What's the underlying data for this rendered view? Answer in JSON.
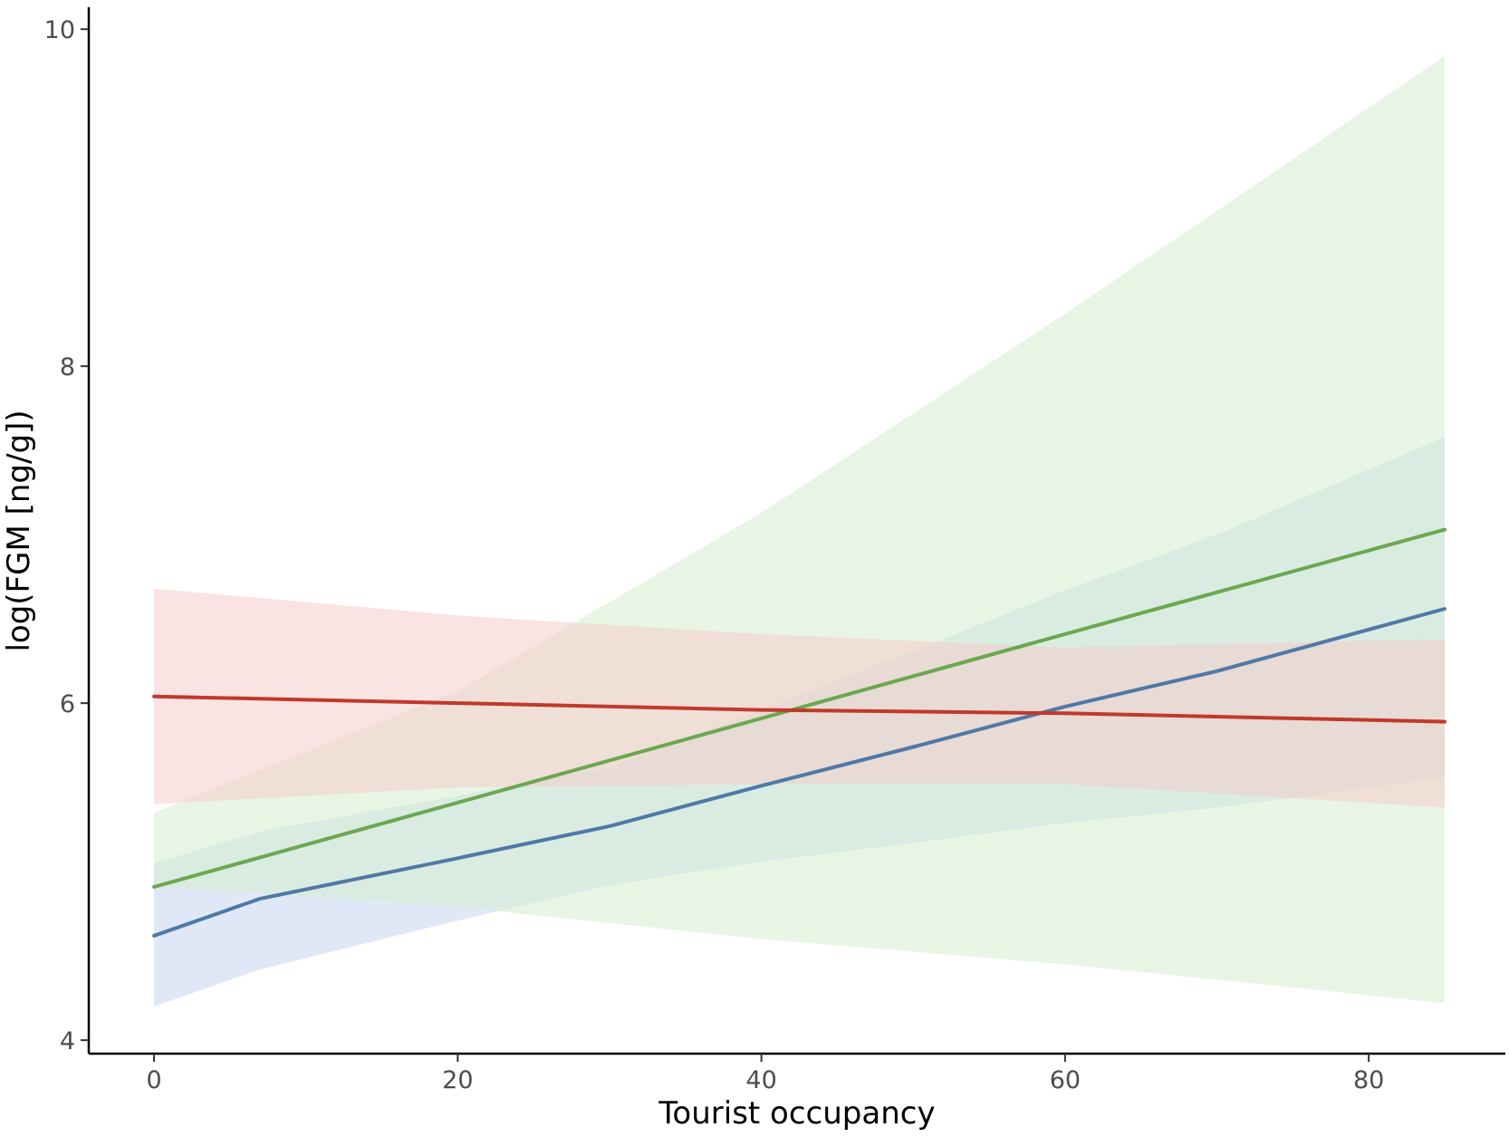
{
  "chart_data": {
    "type": "line",
    "xlabel": "Tourist occupancy",
    "ylabel": "log(FGM [ng/g])",
    "xlim": [
      -4.3,
      89
    ],
    "ylim": [
      3.92,
      10.13
    ],
    "xticks": [
      0,
      20,
      40,
      60,
      80
    ],
    "yticks": [
      4,
      6,
      8,
      10
    ],
    "xtick_labels": [
      "0",
      "20",
      "40",
      "60",
      "80"
    ],
    "ytick_labels": [
      "4",
      "6",
      "8",
      "10"
    ],
    "grid": false,
    "legend": "none",
    "series": [
      {
        "color": "#4e79a7",
        "fill": "#c6d6f0",
        "x": [
          0,
          7,
          20,
          30,
          40,
          50,
          60,
          70,
          85
        ],
        "y": [
          4.62,
          4.84,
          5.08,
          5.27,
          5.51,
          5.74,
          5.98,
          6.19,
          6.56
        ],
        "lower": [
          4.2,
          4.42,
          4.71,
          4.92,
          5.06,
          5.17,
          5.29,
          5.38,
          5.56
        ],
        "upper": [
          5.05,
          5.24,
          5.45,
          5.62,
          5.96,
          6.31,
          6.67,
          7.0,
          7.58
        ]
      },
      {
        "color": "#6aa84f",
        "fill": "#d5ecd0",
        "x": [
          0,
          20,
          40,
          60,
          85
        ],
        "y": [
          4.91,
          5.41,
          5.91,
          6.41,
          7.03
        ],
        "lower": [
          4.91,
          4.79,
          4.6,
          4.45,
          4.22
        ],
        "upper": [
          5.35,
          6.07,
          7.13,
          8.31,
          9.84
        ]
      },
      {
        "color": "#c0392b",
        "fill": "#f4cccc",
        "x": [
          0,
          20,
          40,
          60,
          85
        ],
        "y": [
          6.04,
          6.0,
          5.96,
          5.94,
          5.89
        ],
        "lower": [
          5.4,
          5.5,
          5.52,
          5.52,
          5.38
        ],
        "upper": [
          6.68,
          6.52,
          6.41,
          6.33,
          6.38
        ]
      }
    ]
  }
}
